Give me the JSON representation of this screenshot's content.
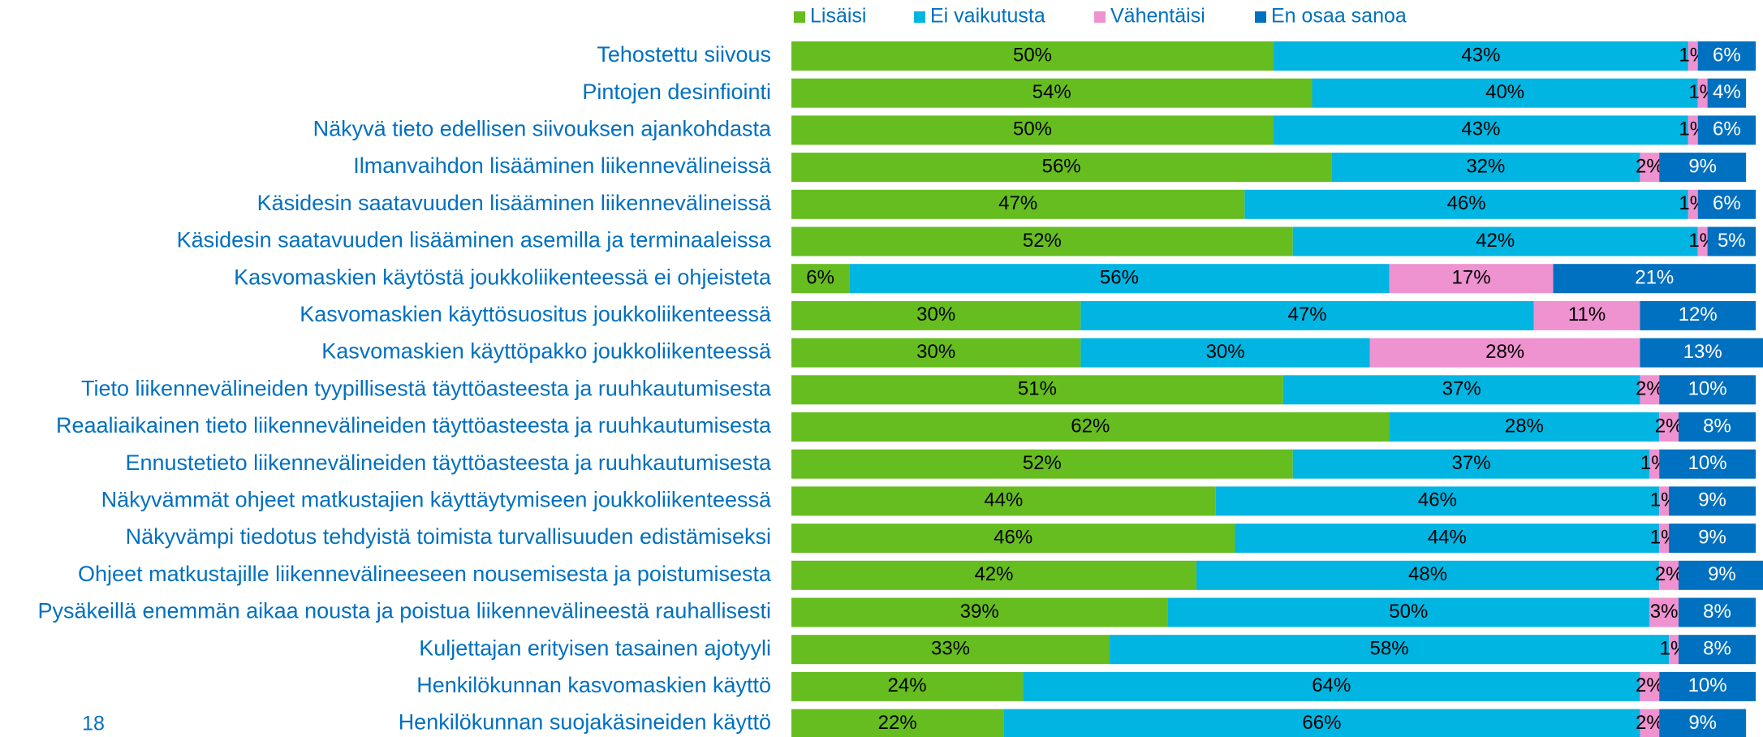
{
  "page_number": "18",
  "chart_data": {
    "type": "stacked-barh",
    "categories": [
      "Tehostettu siivous",
      "Pintojen desinfiointi",
      "Näkyvä tieto edellisen siivouksen ajankohdasta",
      "Ilmanvaihdon lisääminen liikennevälineissä",
      "Käsidesin saatavuuden lisääminen liikennevälineissä",
      "Käsidesin saatavuuden lisääminen asemilla ja terminaaleissa",
      "Kasvomaskien käytöstä joukkoliikenteessä ei ohjeisteta",
      "Kasvomaskien käyttösuositus joukkoliikenteessä",
      "Kasvomaskien käyttöpakko joukkoliikenteessä",
      "Tieto liikennevälineiden tyypillisestä täyttöasteesta ja ruuhkautumisesta",
      "Reaaliaikainen tieto liikennevälineiden täyttöasteesta ja ruuhkautumisesta",
      "Ennustetieto liikennevälineiden täyttöasteesta ja ruuhkautumisesta",
      "Näkyvämmät ohjeet matkustajien käyttäytymiseen joukkoliikenteessä",
      "Näkyvämpi tiedotus tehdyistä toimista turvallisuuden edistämiseksi",
      "Ohjeet matkustajille liikennevälineeseen nousemisesta ja poistumisesta",
      "Pysäkeillä enemmän aikaa nousta ja poistua liikennevälineestä rauhallisesti",
      "Kuljettajan erityisen tasainen ajotyyli",
      "Henkilökunnan kasvomaskien käyttö",
      "Henkilökunnan suojakäsineiden käyttö"
    ],
    "xlim": [
      0,
      100
    ],
    "series": [
      {
        "name": "Lisäisi",
        "color": "#66bd1f",
        "label_color": "#000000",
        "values": [
          50,
          54,
          50,
          56,
          47,
          52,
          6,
          30,
          30,
          51,
          62,
          52,
          44,
          46,
          42,
          39,
          33,
          24,
          22
        ],
        "value_labels": [
          "50%",
          "54%",
          "50%",
          "56%",
          "47%",
          "52%",
          "6%",
          "30%",
          "30%",
          "51%",
          "62%",
          "52%",
          "44%",
          "46%",
          "42%",
          "39%",
          "33%",
          "24%",
          "22%"
        ]
      },
      {
        "name": "Ei vaikutusta",
        "color": "#00b5e2",
        "label_color": "#000000",
        "values": [
          43,
          40,
          43,
          32,
          46,
          42,
          56,
          47,
          30,
          37,
          28,
          37,
          46,
          44,
          48,
          50,
          58,
          64,
          66
        ],
        "value_labels": [
          "43%",
          "40%",
          "43%",
          "32%",
          "46%",
          "42%",
          "56%",
          "47%",
          "30%",
          "37%",
          "28%",
          "37%",
          "46%",
          "44%",
          "48%",
          "50%",
          "58%",
          "64%",
          "66%"
        ]
      },
      {
        "name": "Vähentäisi",
        "color": "#ee92d0",
        "label_color": "#000000",
        "values": [
          1,
          1,
          1,
          2,
          1,
          1,
          17,
          11,
          28,
          2,
          2,
          1,
          1,
          1,
          2,
          3,
          1,
          2,
          2
        ],
        "value_labels": [
          "1%",
          "1%",
          "1%",
          "2%",
          "1%",
          "1%",
          "17%",
          "11%",
          "28%",
          "2%",
          "2%",
          "1%",
          "1%",
          "1%",
          "2%",
          "3%",
          "1%",
          "2%",
          "2%"
        ]
      },
      {
        "name": "En osaa sanoa",
        "color": "#0070c0",
        "label_color": "#ffffff",
        "values": [
          6,
          4,
          6,
          9,
          6,
          5,
          21,
          12,
          13,
          10,
          8,
          10,
          9,
          9,
          9,
          8,
          8,
          10,
          9
        ],
        "value_labels": [
          "6%",
          "4%",
          "6%",
          "9%",
          "6%",
          "5%",
          "21%",
          "12%",
          "13%",
          "10%",
          "8%",
          "10%",
          "9%",
          "9%",
          "9%",
          "8%",
          "8%",
          "10%",
          "9%"
        ]
      }
    ]
  }
}
